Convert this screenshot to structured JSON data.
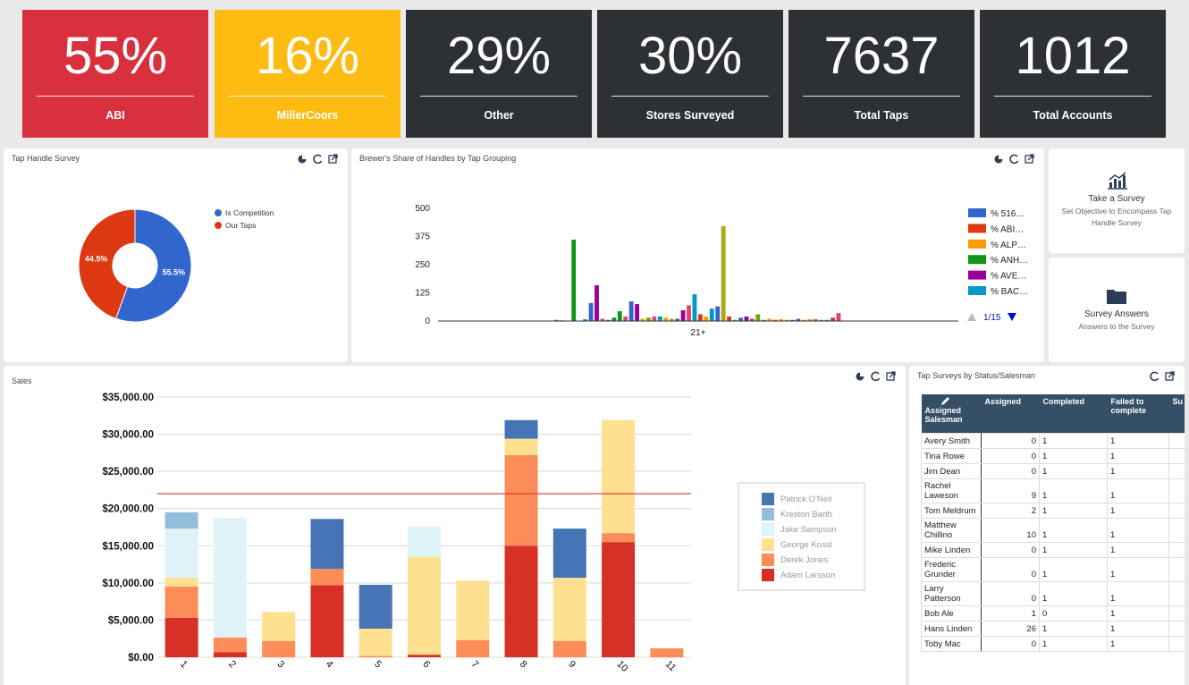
{
  "kpis": [
    {
      "value": "55%",
      "label": "ABI",
      "color": "#d9303e"
    },
    {
      "value": "16%",
      "label": "MillerCoors",
      "color": "#febb12"
    },
    {
      "value": "29%",
      "label": "Other",
      "color": "#2d3135"
    },
    {
      "value": "30%",
      "label": "Stores Surveyed",
      "color": "#2d3135"
    },
    {
      "value": "7637",
      "label": "Total Taps",
      "color": "#2d3135"
    },
    {
      "value": "1012",
      "label": "Total Accounts",
      "color": "#2d3135"
    }
  ],
  "chart_data": [
    {
      "type": "pie",
      "title": "Tap Handle Survey",
      "categories": [
        "Is Competition",
        "Our Taps"
      ],
      "values": [
        55.5,
        44.5
      ],
      "value_labels": [
        "55.5%",
        "44.5%"
      ],
      "colors": [
        "#3366cc",
        "#dc3912"
      ],
      "donut": true
    },
    {
      "type": "bar",
      "title": "Brewer's Share of Handles by Tap Grouping",
      "categories": [
        "21+"
      ],
      "ylim": [
        0,
        500
      ],
      "yticks": [
        0,
        125,
        250,
        375,
        500
      ],
      "grid": false,
      "legend_page": "1/15",
      "series": [
        {
          "name": "% 516…",
          "color": "#3366cc",
          "values": [
            5
          ]
        },
        {
          "name": "% ABI…",
          "color": "#dc3912",
          "values": [
            3
          ]
        },
        {
          "name": "% ALP…",
          "color": "#ff9900",
          "values": [
            0
          ]
        },
        {
          "name": "% ANH…",
          "color": "#109618",
          "values": [
            361
          ]
        },
        {
          "name": "% AVE…",
          "color": "#990099",
          "values": [
            0
          ]
        },
        {
          "name": "% BAC…",
          "color": "#0099c6",
          "values": [
            8
          ]
        },
        {
          "color": "#3366cc",
          "values": [
            80
          ]
        },
        {
          "color": "#990099",
          "values": [
            159
          ]
        },
        {
          "color": "#dd4477",
          "values": [
            10
          ]
        },
        {
          "color": "#316395",
          "values": [
            5
          ]
        },
        {
          "color": "#109618",
          "values": [
            15
          ]
        },
        {
          "color": "#109618",
          "values": [
            44
          ]
        },
        {
          "color": "#dd4477",
          "values": [
            20
          ]
        },
        {
          "color": "#3366cc",
          "values": [
            87
          ]
        },
        {
          "color": "#990099",
          "values": [
            75
          ]
        },
        {
          "color": "#ff9900",
          "values": [
            10
          ]
        },
        {
          "color": "#66aa00",
          "values": [
            15
          ]
        },
        {
          "color": "#dd4477",
          "values": [
            20
          ]
        },
        {
          "color": "#0099c6",
          "values": [
            20
          ]
        },
        {
          "color": "#ff9900",
          "values": [
            15
          ]
        },
        {
          "color": "#aaaa11",
          "values": [
            10
          ]
        },
        {
          "color": "#316395",
          "values": [
            10
          ]
        },
        {
          "color": "#990099",
          "values": [
            48
          ]
        },
        {
          "color": "#dd4477",
          "values": [
            70
          ]
        },
        {
          "color": "#0099c6",
          "values": [
            119
          ]
        },
        {
          "color": "#dc3912",
          "values": [
            30
          ]
        },
        {
          "color": "#ff9900",
          "values": [
            20
          ]
        },
        {
          "color": "#0099c6",
          "values": [
            55
          ]
        },
        {
          "color": "#3366cc",
          "values": [
            65
          ]
        },
        {
          "color": "#aaaa11",
          "values": [
            421
          ]
        },
        {
          "color": "#dc3912",
          "values": [
            20
          ]
        },
        {
          "color": "#22aa99",
          "values": [
            5
          ]
        },
        {
          "color": "#3366cc",
          "values": [
            15
          ]
        },
        {
          "color": "#990099",
          "values": [
            20
          ]
        },
        {
          "color": "#dc3912",
          "values": [
            10
          ]
        },
        {
          "color": "#66aa00",
          "values": [
            30
          ]
        },
        {
          "color": "#109618",
          "values": [
            5
          ]
        },
        {
          "color": "#ff9900",
          "values": [
            10
          ]
        },
        {
          "color": "#dc3912",
          "values": [
            5
          ]
        },
        {
          "color": "#ff9900",
          "values": [
            8
          ]
        },
        {
          "color": "#aaaa11",
          "values": [
            5
          ]
        },
        {
          "color": "#316395",
          "values": [
            5
          ]
        },
        {
          "color": "#3366cc",
          "values": [
            10
          ]
        },
        {
          "color": "#aaaa11",
          "values": [
            5
          ]
        },
        {
          "color": "#ff9900",
          "values": [
            8
          ]
        },
        {
          "color": "#dd4477",
          "values": [
            8
          ]
        },
        {
          "color": "#22aa99",
          "values": [
            5
          ]
        },
        {
          "color": "#994499",
          "values": [
            5
          ]
        },
        {
          "color": "#dc3912",
          "values": [
            15
          ]
        },
        {
          "color": "#dd4477",
          "values": [
            35
          ]
        }
      ]
    },
    {
      "type": "stacked_bar",
      "title": "Sales",
      "categories": [
        "1",
        "2",
        "3",
        "4",
        "5",
        "6",
        "7",
        "8",
        "9",
        "10",
        "11"
      ],
      "ylim": [
        0,
        35000
      ],
      "yticks": [
        {
          "value": 0,
          "label": "$0.00"
        },
        {
          "value": 5000,
          "label": "$5,000.00"
        },
        {
          "value": 10000,
          "label": "$10,000.00"
        },
        {
          "value": 15000,
          "label": "$15,000.00"
        },
        {
          "value": 20000,
          "label": "$20,000.00"
        },
        {
          "value": 25000,
          "label": "$25,000.00"
        },
        {
          "value": 30000,
          "label": "$30,000.00"
        },
        {
          "value": 35000,
          "label": "$35,000.00"
        }
      ],
      "grid": true,
      "reference_line": 22000,
      "reference_color": "#e0312c",
      "series": [
        {
          "name": "Adam Larsson",
          "color": "#d73027",
          "values": [
            5300,
            700,
            0,
            9700,
            0,
            300,
            0,
            15000,
            0,
            15500,
            0
          ]
        },
        {
          "name": "Derek Jones",
          "color": "#fc8d59",
          "values": [
            4200,
            1950,
            2200,
            2200,
            200,
            100,
            2300,
            12200,
            2200,
            1200,
            1200
          ]
        },
        {
          "name": "George Kossl",
          "color": "#fee090",
          "values": [
            1200,
            0,
            3900,
            0,
            3650,
            13100,
            8000,
            2200,
            8500,
            15200,
            0
          ]
        },
        {
          "name": "Jake Sampson",
          "color": "#e0f3f8",
          "values": [
            6600,
            16100,
            0,
            0,
            0,
            4100,
            0,
            0,
            0,
            0,
            0
          ]
        },
        {
          "name": "Kreston Barth",
          "color": "#91bfdb",
          "values": [
            2200,
            0,
            0,
            0,
            0,
            0,
            0,
            0,
            0,
            0,
            0
          ]
        },
        {
          "name": "Patrick O'Neil",
          "color": "#4575b4",
          "values": [
            0,
            0,
            0,
            6700,
            5900,
            0,
            0,
            2500,
            6600,
            0,
            0
          ]
        }
      ]
    }
  ],
  "actions": [
    {
      "title": "Take a Survey",
      "subtitle": "Set Objective to Encompass Tap Handle Survey"
    },
    {
      "title": "Survey Answers",
      "subtitle": "Answers to the Survey"
    }
  ],
  "table": {
    "title": "Tap Surveys by Status/Salesman",
    "columns": [
      "Assigned Salesman",
      "Assigned",
      "Completed",
      "Failed to complete",
      "Su"
    ],
    "rows": [
      [
        "Avery Smith",
        0,
        1,
        1
      ],
      [
        "Tina Rowe",
        0,
        1,
        1
      ],
      [
        "Jim Dean",
        0,
        1,
        1
      ],
      [
        "Rachel Laweson",
        9,
        1,
        1
      ],
      [
        "Tom Meldrum",
        2,
        1,
        1
      ],
      [
        "Matthew Chillino",
        10,
        1,
        1
      ],
      [
        "Mike Linden",
        0,
        1,
        1
      ],
      [
        "Frederic Grunder",
        0,
        1,
        1
      ],
      [
        "Larry Patterson",
        0,
        1,
        1
      ],
      [
        "Bob Ale",
        1,
        0,
        1
      ],
      [
        "Hans Linden",
        26,
        1,
        1
      ],
      [
        "Toby Mac",
        0,
        1,
        1
      ]
    ]
  }
}
